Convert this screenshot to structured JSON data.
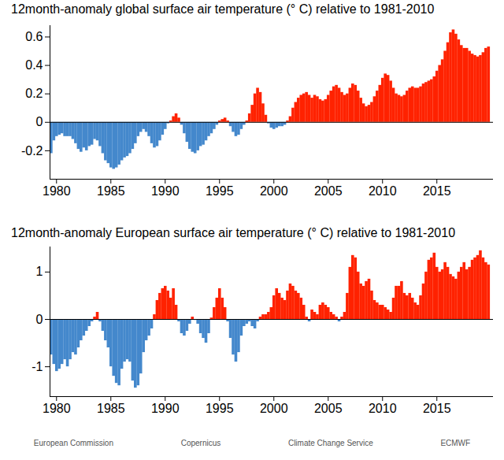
{
  "chart_data": [
    {
      "type": "bar",
      "title": "12month-anomaly global surface air temperature (° C) relative to 1981-2010",
      "x": [
        1979.5,
        1979.75,
        1980,
        1980.25,
        1980.5,
        1980.75,
        1981,
        1981.25,
        1981.5,
        1981.75,
        1982,
        1982.25,
        1982.5,
        1982.75,
        1983,
        1983.25,
        1983.5,
        1983.75,
        1984,
        1984.25,
        1984.5,
        1984.75,
        1985,
        1985.25,
        1985.5,
        1985.75,
        1986,
        1986.25,
        1986.5,
        1986.75,
        1987,
        1987.25,
        1987.5,
        1987.75,
        1988,
        1988.25,
        1988.5,
        1988.75,
        1989,
        1989.25,
        1989.5,
        1989.75,
        1990,
        1990.25,
        1990.5,
        1990.75,
        1991,
        1991.25,
        1991.5,
        1991.75,
        1992,
        1992.25,
        1992.5,
        1992.75,
        1993,
        1993.25,
        1993.5,
        1993.75,
        1994,
        1994.25,
        1994.5,
        1994.75,
        1995,
        1995.25,
        1995.5,
        1995.75,
        1996,
        1996.25,
        1996.5,
        1996.75,
        1997,
        1997.25,
        1997.5,
        1997.75,
        1998,
        1998.25,
        1998.5,
        1998.75,
        1999,
        1999.25,
        1999.5,
        1999.75,
        2000,
        2000.25,
        2000.5,
        2000.75,
        2001,
        2001.25,
        2001.5,
        2001.75,
        2002,
        2002.25,
        2002.5,
        2002.75,
        2003,
        2003.25,
        2003.5,
        2003.75,
        2004,
        2004.25,
        2004.5,
        2004.75,
        2005,
        2005.25,
        2005.5,
        2005.75,
        2006,
        2006.25,
        2006.5,
        2006.75,
        2007,
        2007.25,
        2007.5,
        2007.75,
        2008,
        2008.25,
        2008.5,
        2008.75,
        2009,
        2009.25,
        2009.5,
        2009.75,
        2010,
        2010.25,
        2010.5,
        2010.75,
        2011,
        2011.25,
        2011.5,
        2011.75,
        2012,
        2012.25,
        2012.5,
        2012.75,
        2013,
        2013.25,
        2013.5,
        2013.75,
        2014,
        2014.25,
        2014.5,
        2014.75,
        2015,
        2015.25,
        2015.5,
        2015.75,
        2016,
        2016.25,
        2016.5,
        2016.75,
        2017,
        2017.25,
        2017.5,
        2017.75,
        2018,
        2018.25,
        2018.5,
        2018.75,
        2019,
        2019.25,
        2019.5,
        2019.75
      ],
      "values": [
        -0.22,
        -0.13,
        -0.1,
        -0.09,
        -0.08,
        -0.1,
        -0.1,
        -0.1,
        -0.12,
        -0.15,
        -0.19,
        -0.21,
        -0.18,
        -0.2,
        -0.17,
        -0.16,
        -0.12,
        -0.13,
        -0.17,
        -0.22,
        -0.27,
        -0.29,
        -0.32,
        -0.33,
        -0.32,
        -0.3,
        -0.27,
        -0.25,
        -0.24,
        -0.22,
        -0.19,
        -0.15,
        -0.1,
        -0.07,
        -0.05,
        -0.07,
        -0.1,
        -0.15,
        -0.18,
        -0.17,
        -0.13,
        -0.09,
        -0.05,
        -0.01,
        0.01,
        0.04,
        0.06,
        0.03,
        -0.02,
        -0.08,
        -0.14,
        -0.19,
        -0.21,
        -0.22,
        -0.2,
        -0.17,
        -0.16,
        -0.13,
        -0.1,
        -0.08,
        -0.05,
        -0.02,
        0.01,
        0.02,
        0.03,
        0.01,
        -0.03,
        -0.07,
        -0.1,
        -0.09,
        -0.05,
        -0.02,
        0.01,
        0.06,
        0.12,
        0.2,
        0.24,
        0.21,
        0.13,
        0.05,
        -0.01,
        -0.04,
        -0.05,
        -0.04,
        -0.03,
        -0.03,
        -0.02,
        0.01,
        0.04,
        0.1,
        0.14,
        0.17,
        0.19,
        0.2,
        0.21,
        0.19,
        0.17,
        0.19,
        0.18,
        0.16,
        0.15,
        0.16,
        0.19,
        0.22,
        0.25,
        0.26,
        0.24,
        0.21,
        0.19,
        0.2,
        0.24,
        0.27,
        0.26,
        0.22,
        0.17,
        0.13,
        0.11,
        0.12,
        0.14,
        0.18,
        0.22,
        0.26,
        0.31,
        0.34,
        0.33,
        0.29,
        0.24,
        0.2,
        0.19,
        0.18,
        0.19,
        0.22,
        0.24,
        0.25,
        0.24,
        0.24,
        0.25,
        0.27,
        0.28,
        0.29,
        0.3,
        0.32,
        0.36,
        0.4,
        0.44,
        0.5,
        0.56,
        0.63,
        0.65,
        0.62,
        0.58,
        0.54,
        0.52,
        0.52,
        0.5,
        0.48,
        0.47,
        0.46,
        0.47,
        0.49,
        0.52,
        0.53
      ],
      "colors": [
        "#48c",
        "#48c",
        "#48c",
        "#48c",
        "#48c",
        "#48c",
        "#48c",
        "#48c",
        "#48c",
        "#48c",
        "#48c",
        "#48c",
        "#48c",
        "#48c",
        "#48c",
        "#48c",
        "#48c",
        "#48c",
        "#48c",
        "#48c",
        "#48c",
        "#48c",
        "#48c",
        "#48c",
        "#48c",
        "#48c",
        "#48c",
        "#48c",
        "#48c",
        "#48c",
        "#48c",
        "#48c",
        "#48c",
        "#48c",
        "#48c",
        "#48c",
        "#48c",
        "#48c",
        "#48c",
        "#48c",
        "#48c",
        "#48c",
        "#48c",
        "#48c",
        "#f20",
        "#f20",
        "#f20",
        "#f20",
        "#48c",
        "#48c",
        "#48c",
        "#48c",
        "#48c",
        "#48c",
        "#48c",
        "#48c",
        "#48c",
        "#48c",
        "#48c",
        "#48c",
        "#48c",
        "#48c",
        "#f20",
        "#f20",
        "#f20",
        "#f20",
        "#48c",
        "#48c",
        "#48c",
        "#48c",
        "#48c",
        "#48c",
        "#f20",
        "#f20",
        "#f20",
        "#f20",
        "#f20",
        "#f20",
        "#f20",
        "#f20",
        "#48c",
        "#48c",
        "#48c",
        "#48c",
        "#48c",
        "#48c",
        "#48c",
        "#f20",
        "#f20",
        "#f20",
        "#f20",
        "#f20",
        "#f20",
        "#f20",
        "#f20",
        "#f20",
        "#f20",
        "#f20",
        "#f20",
        "#f20",
        "#f20",
        "#f20",
        "#f20",
        "#f20",
        "#f20",
        "#f20",
        "#f20",
        "#f20",
        "#f20",
        "#f20",
        "#f20",
        "#f20",
        "#f20",
        "#f20",
        "#f20",
        "#f20",
        "#f20",
        "#f20",
        "#f20",
        "#f20",
        "#f20",
        "#f20",
        "#f20",
        "#f20",
        "#f20",
        "#f20",
        "#f20",
        "#f20",
        "#f20",
        "#f20",
        "#f20",
        "#f20",
        "#f20",
        "#f20",
        "#f20",
        "#f20",
        "#f20",
        "#f20",
        "#f20",
        "#f20",
        "#f20",
        "#f20",
        "#f20",
        "#f20",
        "#f20",
        "#f20",
        "#f20",
        "#f20",
        "#f20",
        "#f20",
        "#f20",
        "#f20",
        "#f20",
        "#f20",
        "#f20",
        "#f20",
        "#f20",
        "#f20",
        "#f20",
        "#f20",
        "#f20",
        "#f20"
      ],
      "xlim": [
        1979.4,
        2020.2
      ],
      "xticks": [
        1980,
        1985,
        1990,
        1995,
        2000,
        2005,
        2010,
        2015
      ],
      "ylim": [
        -0.4,
        0.68
      ],
      "yticks": [
        -0.2,
        0,
        0.2,
        0.4,
        0.6
      ],
      "grid": false
    },
    {
      "type": "bar",
      "title": "12month-anomaly European surface air temperature (° C) relative to 1981-2010",
      "x": [
        1979.5,
        1979.75,
        1980,
        1980.25,
        1980.5,
        1980.75,
        1981,
        1981.25,
        1981.5,
        1981.75,
        1982,
        1982.25,
        1982.5,
        1982.75,
        1983,
        1983.25,
        1983.5,
        1983.75,
        1984,
        1984.25,
        1984.5,
        1984.75,
        1985,
        1985.25,
        1985.5,
        1985.75,
        1986,
        1986.25,
        1986.5,
        1986.75,
        1987,
        1987.25,
        1987.5,
        1987.75,
        1988,
        1988.25,
        1988.5,
        1988.75,
        1989,
        1989.25,
        1989.5,
        1989.75,
        1990,
        1990.25,
        1990.5,
        1990.75,
        1991,
        1991.25,
        1991.5,
        1991.75,
        1992,
        1992.25,
        1992.5,
        1992.75,
        1993,
        1993.25,
        1993.5,
        1993.75,
        1994,
        1994.25,
        1994.5,
        1994.75,
        1995,
        1995.25,
        1995.5,
        1995.75,
        1996,
        1996.25,
        1996.5,
        1996.75,
        1997,
        1997.25,
        1997.5,
        1997.75,
        1998,
        1998.25,
        1998.5,
        1998.75,
        1999,
        1999.25,
        1999.5,
        1999.75,
        2000,
        2000.25,
        2000.5,
        2000.75,
        2001,
        2001.25,
        2001.5,
        2001.75,
        2002,
        2002.25,
        2002.5,
        2002.75,
        2003,
        2003.25,
        2003.5,
        2003.75,
        2004,
        2004.25,
        2004.5,
        2004.75,
        2005,
        2005.25,
        2005.5,
        2005.75,
        2006,
        2006.25,
        2006.5,
        2006.75,
        2007,
        2007.25,
        2007.5,
        2007.75,
        2008,
        2008.25,
        2008.5,
        2008.75,
        2009,
        2009.25,
        2009.5,
        2009.75,
        2010,
        2010.25,
        2010.5,
        2010.75,
        2011,
        2011.25,
        2011.5,
        2011.75,
        2012,
        2012.25,
        2012.5,
        2012.75,
        2013,
        2013.25,
        2013.5,
        2013.75,
        2014,
        2014.25,
        2014.5,
        2014.75,
        2015,
        2015.25,
        2015.5,
        2015.75,
        2016,
        2016.25,
        2016.5,
        2016.75,
        2017,
        2017.25,
        2017.5,
        2017.75,
        2018,
        2018.25,
        2018.5,
        2018.75,
        2019,
        2019.25,
        2019.5,
        2019.75
      ],
      "values": [
        -0.75,
        -0.95,
        -1.1,
        -1.05,
        -0.95,
        -0.85,
        -1.0,
        -0.85,
        -0.7,
        -0.75,
        -0.6,
        -0.45,
        -0.35,
        -0.25,
        -0.15,
        -0.05,
        0.05,
        0.15,
        -0.05,
        -0.25,
        -0.45,
        -0.6,
        -1.0,
        -1.2,
        -1.35,
        -1.4,
        -1.05,
        -0.9,
        -0.85,
        -0.9,
        -1.3,
        -1.45,
        -1.4,
        -1.15,
        -0.7,
        -0.45,
        -0.35,
        -0.2,
        0.1,
        0.4,
        0.55,
        0.65,
        0.7,
        0.6,
        0.45,
        0.65,
        0.3,
        -0.05,
        -0.3,
        -0.35,
        -0.25,
        -0.1,
        0.05,
        -0.02,
        -0.1,
        -0.3,
        -0.4,
        -0.5,
        -0.3,
        0.03,
        0.25,
        0.45,
        0.65,
        0.45,
        0.25,
        -0.05,
        -0.4,
        -0.75,
        -0.9,
        -0.7,
        -0.35,
        -0.15,
        -0.1,
        -0.05,
        -0.15,
        -0.2,
        -0.05,
        0.05,
        0.1,
        0.1,
        0.15,
        0.25,
        0.5,
        0.65,
        0.55,
        0.45,
        0.4,
        0.6,
        0.75,
        0.7,
        0.6,
        0.55,
        0.45,
        0.3,
        0.05,
        -0.05,
        0.2,
        0.15,
        0.1,
        0.3,
        0.35,
        0.3,
        0.25,
        0.15,
        0.1,
        0.05,
        -0.05,
        0.05,
        0.15,
        0.55,
        1.1,
        1.35,
        1.3,
        1.0,
        0.75,
        0.7,
        0.8,
        0.85,
        0.6,
        0.4,
        0.35,
        0.3,
        0.3,
        0.25,
        0.2,
        0.15,
        0.45,
        0.7,
        0.7,
        0.8,
        0.55,
        0.5,
        0.55,
        0.45,
        0.35,
        0.3,
        0.5,
        0.75,
        1.0,
        1.25,
        1.3,
        1.4,
        1.1,
        1.0,
        1.05,
        1.2,
        1.1,
        0.95,
        0.9,
        0.85,
        1.0,
        1.1,
        1.2,
        1.05,
        1.1,
        1.25,
        1.3,
        1.35,
        1.45,
        1.3,
        1.2,
        1.15
      ],
      "colors": [
        "#48c",
        "#48c",
        "#48c",
        "#48c",
        "#48c",
        "#48c",
        "#48c",
        "#48c",
        "#48c",
        "#48c",
        "#48c",
        "#48c",
        "#48c",
        "#48c",
        "#48c",
        "#48c",
        "#f20",
        "#f20",
        "#48c",
        "#48c",
        "#48c",
        "#48c",
        "#48c",
        "#48c",
        "#48c",
        "#48c",
        "#48c",
        "#48c",
        "#48c",
        "#48c",
        "#48c",
        "#48c",
        "#48c",
        "#48c",
        "#48c",
        "#48c",
        "#48c",
        "#48c",
        "#f20",
        "#f20",
        "#f20",
        "#f20",
        "#f20",
        "#f20",
        "#f20",
        "#f20",
        "#f20",
        "#48c",
        "#48c",
        "#48c",
        "#48c",
        "#48c",
        "#f20",
        "#48c",
        "#48c",
        "#48c",
        "#48c",
        "#48c",
        "#48c",
        "#f20",
        "#f20",
        "#f20",
        "#f20",
        "#f20",
        "#f20",
        "#48c",
        "#48c",
        "#48c",
        "#48c",
        "#48c",
        "#48c",
        "#48c",
        "#48c",
        "#48c",
        "#48c",
        "#48c",
        "#48c",
        "#f20",
        "#f20",
        "#f20",
        "#f20",
        "#f20",
        "#f20",
        "#f20",
        "#f20",
        "#f20",
        "#f20",
        "#f20",
        "#f20",
        "#f20",
        "#f20",
        "#f20",
        "#f20",
        "#f20",
        "#f20",
        "#48c",
        "#f20",
        "#f20",
        "#f20",
        "#f20",
        "#f20",
        "#f20",
        "#f20",
        "#f20",
        "#f20",
        "#f20",
        "#48c",
        "#f20",
        "#f20",
        "#f20",
        "#f20",
        "#f20",
        "#f20",
        "#f20",
        "#f20",
        "#f20",
        "#f20",
        "#f20",
        "#f20",
        "#f20",
        "#f20",
        "#f20",
        "#f20",
        "#f20",
        "#f20",
        "#f20",
        "#f20",
        "#f20",
        "#f20",
        "#f20",
        "#f20",
        "#f20",
        "#f20",
        "#f20",
        "#f20",
        "#f20",
        "#f20",
        "#f20",
        "#f20",
        "#f20",
        "#f20",
        "#f20",
        "#f20",
        "#f20",
        "#f20",
        "#f20",
        "#f20",
        "#f20",
        "#f20",
        "#f20",
        "#f20",
        "#f20",
        "#f20",
        "#f20",
        "#f20",
        "#f20",
        "#f20",
        "#f20",
        "#f20",
        "#f20",
        "#f20",
        "#f20"
      ],
      "xlim": [
        1979.4,
        2020.2
      ],
      "xticks": [
        1980,
        1985,
        1990,
        1995,
        2000,
        2005,
        2010,
        2015
      ],
      "ylim": [
        -1.63,
        1.53
      ],
      "yticks": [
        -1,
        0,
        1
      ],
      "grid": false
    }
  ],
  "footer": [
    "European Commission",
    "Copernicus",
    "Climate Change Service",
    "ECMWF"
  ]
}
